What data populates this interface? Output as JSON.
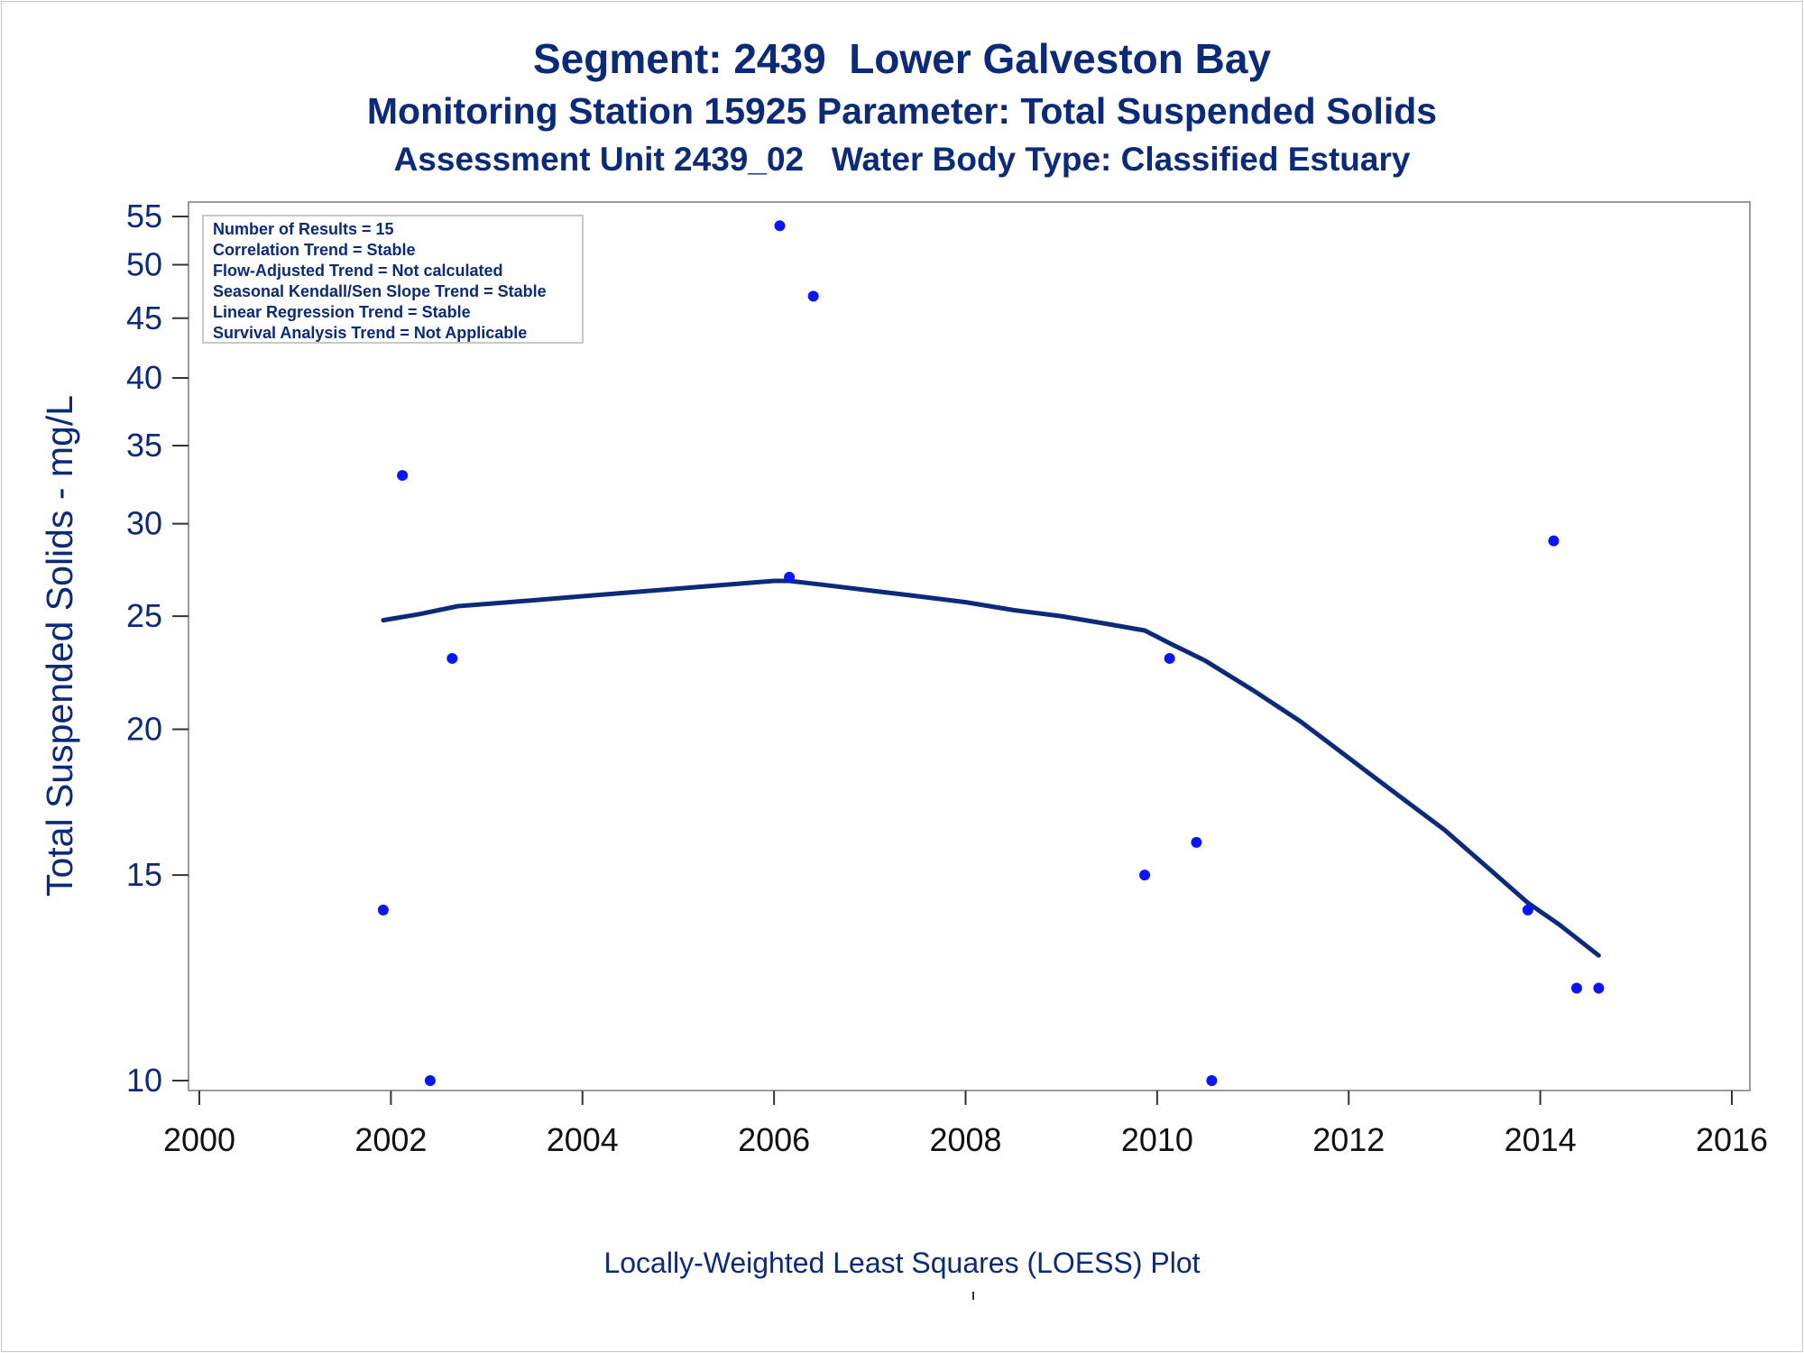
{
  "titles": {
    "line1": "Segment: 2439  Lower Galveston Bay",
    "line2": "Monitoring Station 15925 Parameter: Total Suspended Solids",
    "line3": "Assessment Unit 2439_02   Water Body Type: Classified Estuary"
  },
  "footnote": "Locally-Weighted Least Squares (LOESS) Plot",
  "stats_box": [
    "Number of Results = 15",
    "Correlation Trend = Stable",
    "Flow-Adjusted Trend = Not calculated",
    "Seasonal Kendall/Sen Slope Trend = Stable",
    "Linear Regression Trend = Stable",
    "Survival Analysis Trend = Not Applicable"
  ],
  "colors": {
    "title": "#0c2a7a",
    "points": "#0a14ff",
    "loess_line": "#0c2a7a",
    "axis_frame": "#9a9a9a"
  },
  "chart_data": {
    "type": "scatter",
    "ylabel": "Total Suspended Solids - mg/L",
    "xlabel": "",
    "y_scale": "log",
    "xlim": [
      2000,
      2016
    ],
    "ylim": [
      9.8,
      56
    ],
    "x_ticks": [
      2000,
      2002,
      2004,
      2006,
      2008,
      2010,
      2012,
      2014,
      2016
    ],
    "y_ticks": [
      10,
      15,
      20,
      25,
      30,
      35,
      40,
      45,
      50,
      55
    ],
    "grid": false,
    "series": [
      {
        "kind": "points",
        "x": [
          2001.92,
          2002.12,
          2002.41,
          2002.64,
          2006.06,
          2006.16,
          2006.41,
          2009.87,
          2010.13,
          2010.41,
          2010.57,
          2013.87,
          2014.14,
          2014.38,
          2014.61
        ],
        "y": [
          14,
          33,
          10,
          23,
          54,
          27,
          47,
          15,
          23,
          16,
          10,
          14,
          29,
          12,
          12
        ]
      },
      {
        "kind": "line",
        "x": [
          2001.92,
          2002.3,
          2002.7,
          2003.5,
          2004.0,
          2004.5,
          2005.0,
          2005.5,
          2006.0,
          2006.16,
          2006.5,
          2007.0,
          2007.5,
          2008.0,
          2008.5,
          2009.0,
          2009.5,
          2009.87,
          2010.0,
          2010.13,
          2010.5,
          2011.0,
          2011.5,
          2012.0,
          2012.5,
          2013.0,
          2013.5,
          2013.87,
          2014.2,
          2014.61
        ],
        "y": [
          24.8,
          25.1,
          25.5,
          25.8,
          26.0,
          26.2,
          26.4,
          26.6,
          26.8,
          26.8,
          26.6,
          26.3,
          26.0,
          25.7,
          25.3,
          25.0,
          24.6,
          24.3,
          24.0,
          23.7,
          22.9,
          21.6,
          20.3,
          18.9,
          17.6,
          16.4,
          15.1,
          14.2,
          13.6,
          12.8
        ]
      }
    ]
  }
}
